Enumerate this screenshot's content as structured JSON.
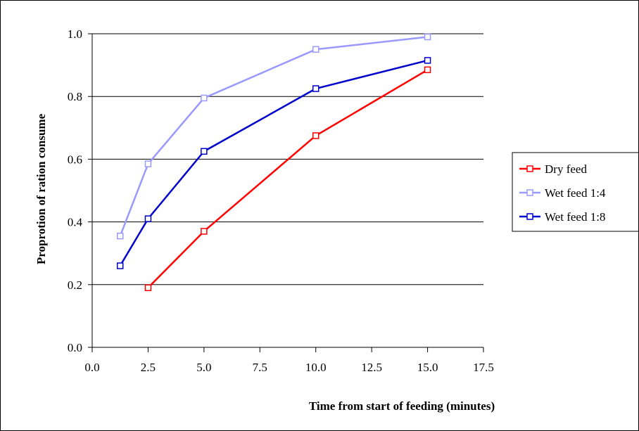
{
  "chart_data": {
    "type": "line",
    "xlabel": "Time from start of feeding (minutes)",
    "ylabel": "Proprotion of ration consume",
    "xlim": [
      0,
      17.5
    ],
    "ylim": [
      0,
      1.0
    ],
    "x_ticks": [
      "0.0",
      "2.5",
      "5.0",
      "7.5",
      "10.0",
      "12.5",
      "15.0",
      "17.5"
    ],
    "y_ticks": [
      "0.0",
      "0.2",
      "0.4",
      "0.6",
      "0.8",
      "1.0"
    ],
    "grid": "horizontal",
    "legend_position": "right",
    "series": [
      {
        "name": "Dry feed",
        "color": "#ff0000",
        "marker": "open-square",
        "points": [
          [
            2.5,
            0.19
          ],
          [
            5.0,
            0.37
          ],
          [
            10.0,
            0.675
          ],
          [
            15.0,
            0.885
          ]
        ]
      },
      {
        "name": "Wet feed 1:4",
        "color": "#9999ff",
        "marker": "open-square",
        "points": [
          [
            1.25,
            0.355
          ],
          [
            2.5,
            0.585
          ],
          [
            5.0,
            0.795
          ],
          [
            10.0,
            0.95
          ],
          [
            15.0,
            0.99
          ]
        ]
      },
      {
        "name": "Wet feed 1:8",
        "color": "#0000cc",
        "marker": "open-square",
        "points": [
          [
            1.25,
            0.26
          ],
          [
            2.5,
            0.41
          ],
          [
            5.0,
            0.625
          ],
          [
            10.0,
            0.825
          ],
          [
            15.0,
            0.915
          ]
        ]
      }
    ]
  }
}
